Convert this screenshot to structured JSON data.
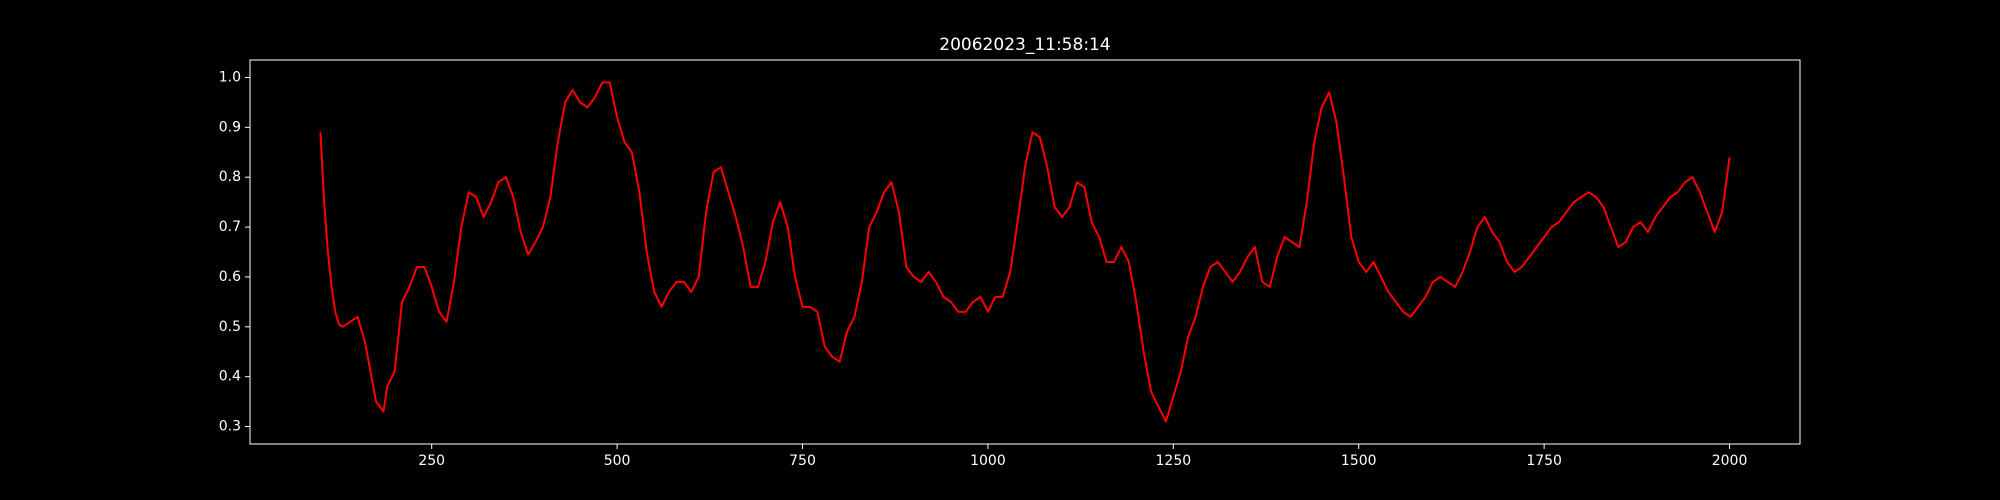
{
  "chart_data": {
    "type": "line",
    "title": "20062023_11:58:14",
    "color": "#ff0000",
    "x": [
      100,
      105,
      110,
      115,
      120,
      125,
      130,
      140,
      150,
      160,
      170,
      175,
      180,
      185,
      190,
      200,
      210,
      220,
      230,
      240,
      250,
      260,
      270,
      280,
      290,
      300,
      310,
      320,
      330,
      340,
      350,
      360,
      370,
      380,
      390,
      400,
      410,
      420,
      430,
      440,
      450,
      460,
      470,
      480,
      490,
      500,
      510,
      520,
      530,
      540,
      550,
      560,
      570,
      580,
      590,
      600,
      610,
      620,
      630,
      640,
      650,
      660,
      670,
      680,
      690,
      700,
      710,
      720,
      730,
      740,
      750,
      760,
      770,
      780,
      790,
      800,
      810,
      820,
      830,
      840,
      850,
      860,
      870,
      880,
      890,
      900,
      910,
      920,
      930,
      940,
      950,
      960,
      970,
      980,
      990,
      1000,
      1010,
      1020,
      1030,
      1040,
      1050,
      1060,
      1070,
      1080,
      1090,
      1100,
      1110,
      1120,
      1130,
      1140,
      1150,
      1160,
      1170,
      1180,
      1190,
      1200,
      1210,
      1220,
      1230,
      1240,
      1250,
      1260,
      1270,
      1280,
      1290,
      1300,
      1310,
      1320,
      1330,
      1340,
      1350,
      1360,
      1370,
      1380,
      1390,
      1400,
      1410,
      1420,
      1430,
      1440,
      1450,
      1460,
      1470,
      1480,
      1490,
      1500,
      1510,
      1520,
      1530,
      1540,
      1550,
      1560,
      1570,
      1580,
      1590,
      1600,
      1610,
      1620,
      1630,
      1640,
      1650,
      1660,
      1670,
      1680,
      1690,
      1700,
      1710,
      1720,
      1730,
      1740,
      1750,
      1760,
      1770,
      1780,
      1790,
      1800,
      1810,
      1820,
      1830,
      1840,
      1850,
      1860,
      1870,
      1880,
      1890,
      1900,
      1910,
      1920,
      1930,
      1940,
      1950,
      1960,
      1970,
      1980,
      1990,
      2000
    ],
    "values": [
      0.89,
      0.75,
      0.65,
      0.58,
      0.53,
      0.505,
      0.5,
      0.51,
      0.52,
      0.47,
      0.39,
      0.35,
      0.34,
      0.33,
      0.38,
      0.41,
      0.55,
      0.58,
      0.62,
      0.62,
      0.58,
      0.53,
      0.51,
      0.59,
      0.7,
      0.77,
      0.76,
      0.72,
      0.75,
      0.79,
      0.8,
      0.76,
      0.69,
      0.645,
      0.67,
      0.7,
      0.76,
      0.87,
      0.95,
      0.975,
      0.95,
      0.94,
      0.96,
      0.99,
      0.99,
      0.92,
      0.87,
      0.85,
      0.77,
      0.65,
      0.57,
      0.54,
      0.57,
      0.59,
      0.59,
      0.57,
      0.6,
      0.73,
      0.81,
      0.82,
      0.77,
      0.72,
      0.66,
      0.58,
      0.58,
      0.63,
      0.71,
      0.75,
      0.7,
      0.6,
      0.54,
      0.54,
      0.53,
      0.46,
      0.44,
      0.43,
      0.49,
      0.52,
      0.59,
      0.7,
      0.73,
      0.77,
      0.79,
      0.73,
      0.62,
      0.6,
      0.59,
      0.61,
      0.59,
      0.56,
      0.55,
      0.53,
      0.53,
      0.55,
      0.56,
      0.53,
      0.56,
      0.56,
      0.61,
      0.71,
      0.82,
      0.89,
      0.88,
      0.82,
      0.74,
      0.72,
      0.74,
      0.79,
      0.78,
      0.71,
      0.68,
      0.63,
      0.63,
      0.66,
      0.63,
      0.55,
      0.45,
      0.37,
      0.34,
      0.31,
      0.36,
      0.41,
      0.48,
      0.52,
      0.58,
      0.62,
      0.63,
      0.61,
      0.59,
      0.61,
      0.64,
      0.66,
      0.59,
      0.58,
      0.64,
      0.68,
      0.67,
      0.66,
      0.75,
      0.87,
      0.94,
      0.97,
      0.91,
      0.8,
      0.68,
      0.63,
      0.61,
      0.63,
      0.6,
      0.57,
      0.55,
      0.53,
      0.52,
      0.54,
      0.56,
      0.59,
      0.6,
      0.59,
      0.58,
      0.61,
      0.65,
      0.7,
      0.72,
      0.69,
      0.67,
      0.63,
      0.61,
      0.62,
      0.64,
      0.66,
      0.68,
      0.7,
      0.71,
      0.73,
      0.75,
      0.76,
      0.77,
      0.76,
      0.74,
      0.7,
      0.66,
      0.67,
      0.7,
      0.71,
      0.69,
      0.72,
      0.74,
      0.76,
      0.77,
      0.79,
      0.8,
      0.77,
      0.73,
      0.69,
      0.73,
      0.84
    ],
    "xlim": [
      5,
      2095
    ],
    "xticks": [
      250,
      500,
      750,
      1000,
      1250,
      1500,
      1750,
      2000
    ],
    "ylim": [
      0.265,
      1.035
    ],
    "yticks": [
      0.3,
      0.4,
      0.5,
      0.6,
      0.7,
      0.8,
      0.9,
      {
        "value": 1,
        "label": "1.0"
      }
    ]
  }
}
